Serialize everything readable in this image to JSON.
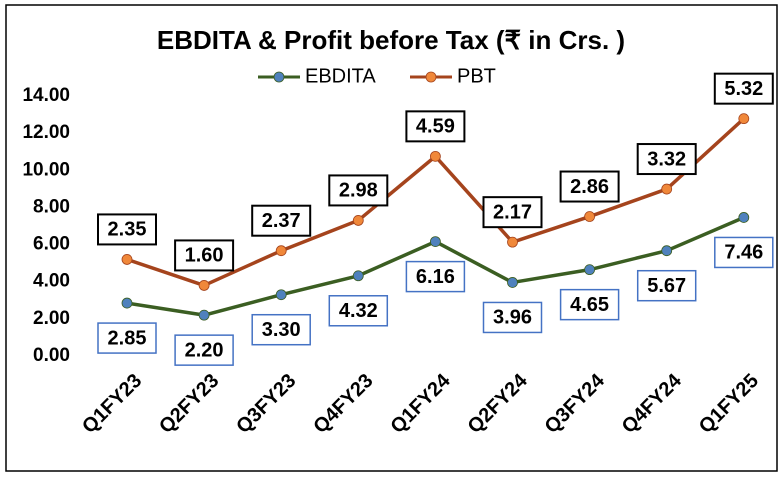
{
  "chart_data": {
    "type": "line",
    "stacked": true,
    "title": "EBDITA & Profit before Tax (₹ in Crs. )",
    "categories": [
      "Q1FY23",
      "Q2FY23",
      "Q3FY23",
      "Q4FY23",
      "Q1FY24",
      "Q2FY24",
      "Q3FY24",
      "Q4FY24",
      "Q1FY25"
    ],
    "series": [
      {
        "name": "EBDITA",
        "color": "#3b5e22",
        "marker_color": "#4f81bd",
        "label_border": "#4472c4",
        "values": [
          2.85,
          2.2,
          3.3,
          4.32,
          6.16,
          3.96,
          4.65,
          5.67,
          7.46
        ],
        "value_labels": [
          "2.85",
          "2.20",
          "3.30",
          "4.32",
          "6.16",
          "3.96",
          "4.65",
          "5.67",
          "7.46"
        ]
      },
      {
        "name": "PBT",
        "color": "#a5441d",
        "marker_color": "#f0883a",
        "label_border": "#000000",
        "values": [
          2.35,
          1.6,
          2.37,
          2.98,
          4.59,
          2.17,
          2.86,
          3.32,
          5.32
        ],
        "value_labels": [
          "2.35",
          "1.60",
          "2.37",
          "2.98",
          "4.59",
          "2.17",
          "2.86",
          "3.32",
          "5.32"
        ]
      }
    ],
    "ylim": [
      0,
      14
    ],
    "yticks": [
      {
        "value": 0,
        "label": "0.00"
      },
      {
        "value": 2,
        "label": "2.00"
      },
      {
        "value": 4,
        "label": "4.00"
      },
      {
        "value": 6,
        "label": "6.00"
      },
      {
        "value": 8,
        "label": "8.00"
      },
      {
        "value": 10,
        "label": "10.00"
      },
      {
        "value": 12,
        "label": "12.00"
      },
      {
        "value": 14,
        "label": "14.00"
      }
    ],
    "grid": false,
    "legend": "top"
  }
}
